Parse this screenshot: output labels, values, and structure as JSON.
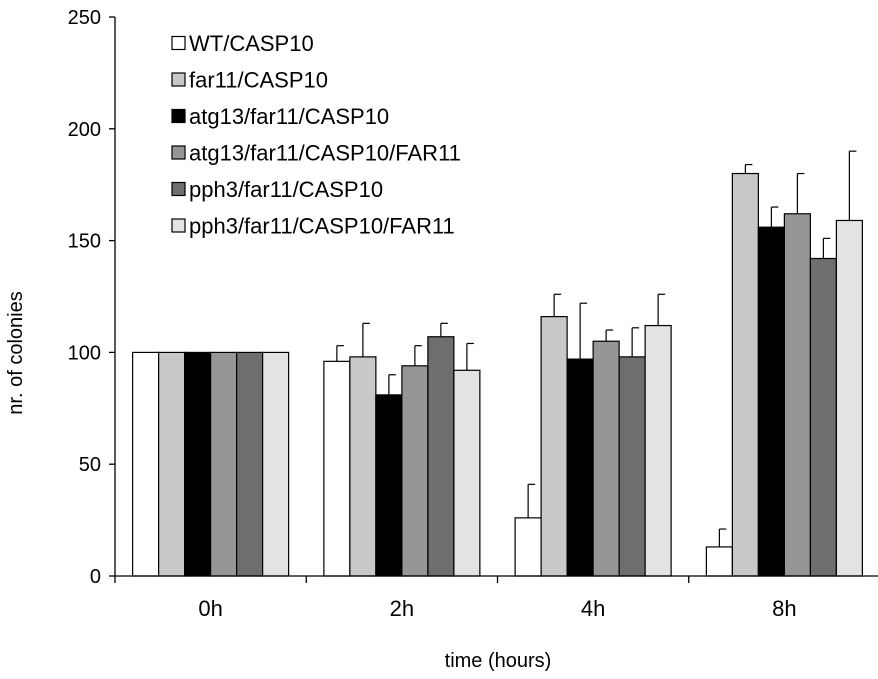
{
  "chart_data": {
    "type": "bar",
    "title": "",
    "xlabel": "time (hours)",
    "ylabel": "nr. of colonies",
    "ylim": [
      0,
      250
    ],
    "yticks": [
      0,
      50,
      100,
      150,
      200,
      250
    ],
    "grid": false,
    "legend_position": "top-left",
    "categories": [
      "0h",
      "2h",
      "4h",
      "8h"
    ],
    "series": [
      {
        "name": "WT/CASP10",
        "color": "#ffffff",
        "values": [
          100,
          96,
          26,
          13
        ],
        "errors": [
          0,
          7,
          15,
          8
        ]
      },
      {
        "name": "far11/CASP10",
        "color": "#c8c8c8",
        "values": [
          100,
          98,
          116,
          180
        ],
        "errors": [
          0,
          15,
          10,
          4
        ]
      },
      {
        "name": "atg13/far11/CASP10",
        "color": "#000000",
        "values": [
          100,
          81,
          97,
          156
        ],
        "errors": [
          0,
          9,
          25,
          9
        ]
      },
      {
        "name": "atg13/far11/CASP10/FAR11",
        "color": "#969696",
        "values": [
          100,
          94,
          105,
          162
        ],
        "errors": [
          0,
          9,
          5,
          18
        ]
      },
      {
        "name": "pph3/far11/CASP10",
        "color": "#6e6e6e",
        "values": [
          100,
          107,
          98,
          142
        ],
        "errors": [
          0,
          6,
          13,
          9
        ]
      },
      {
        "name": "pph3/far11/CASP10/FAR11",
        "color": "#e3e3e3",
        "values": [
          100,
          92,
          112,
          159
        ],
        "errors": [
          0,
          12,
          14,
          31
        ]
      }
    ]
  }
}
